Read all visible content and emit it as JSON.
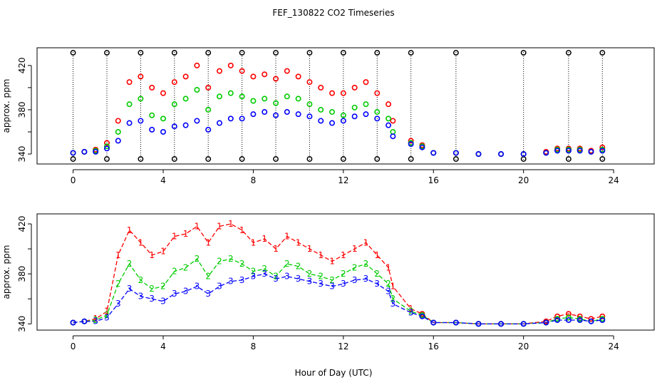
{
  "figure": {
    "title": "FEF_130822  CO2 Timeseries",
    "xlabel": "Hour of Day (UTC)"
  },
  "chart_data": [
    {
      "type": "scatter",
      "title": "FEF_130822  CO2 Timeseries",
      "ylabel": "approx. ppm",
      "xlim": [
        -1.6,
        25.8
      ],
      "ylim": [
        331,
        436
      ],
      "xticks": [
        0,
        4,
        8,
        12,
        16,
        20,
        24
      ],
      "yticks": [
        340,
        360,
        380,
        400,
        420
      ],
      "ytick_labels": [
        "340",
        "",
        "380",
        "",
        "420"
      ],
      "grid": false,
      "colors": {
        "s1": "#ff0000",
        "s2": "#00cc00",
        "s3": "#0000ff",
        "s0": "#000000",
        "s5": "#00cccc"
      },
      "series": [
        {
          "x": [
            0.0,
            0.5,
            1.0,
            1.5,
            2.0,
            2.5,
            3.0,
            3.5,
            4.0,
            4.5,
            5.0,
            5.5,
            6.0,
            6.5,
            7.0,
            7.5,
            8.0,
            8.5,
            9.0,
            9.5,
            10.0,
            10.5,
            11.0,
            11.5,
            12.0,
            12.5,
            13.0,
            13.5,
            14.0,
            14.2,
            15.0,
            15.5,
            16.0,
            17.0,
            18.0,
            19.0,
            20.0,
            21.0,
            21.5,
            22.0,
            22.5,
            23.0,
            23.5
          ],
          "values": [
            341,
            342,
            344,
            350,
            370,
            405,
            410,
            400,
            395,
            405,
            410,
            420,
            400,
            415,
            420,
            415,
            410,
            412,
            408,
            415,
            410,
            405,
            400,
            395,
            395,
            400,
            405,
            395,
            385,
            370,
            352,
            348,
            341,
            341,
            340,
            340,
            340,
            342,
            345,
            345,
            345,
            343,
            346
          ]
        },
        {
          "x": [
            0.0,
            0.5,
            1.0,
            1.5,
            2.0,
            2.5,
            3.0,
            3.5,
            4.0,
            4.5,
            5.0,
            5.5,
            6.0,
            6.5,
            7.0,
            7.5,
            8.0,
            8.5,
            9.0,
            9.5,
            10.0,
            10.5,
            11.0,
            11.5,
            12.0,
            12.5,
            13.0,
            13.5,
            14.0,
            14.2,
            15.0,
            15.5,
            16.0,
            17.0,
            18.0,
            19.0,
            20.0,
            21.0,
            21.5,
            22.0,
            22.5,
            23.0,
            23.5
          ],
          "values": [
            341,
            342,
            343,
            347,
            360,
            385,
            390,
            375,
            372,
            385,
            390,
            398,
            380,
            392,
            395,
            392,
            388,
            390,
            386,
            392,
            390,
            385,
            380,
            378,
            375,
            382,
            385,
            378,
            372,
            360,
            350,
            347,
            341,
            341,
            340,
            340,
            340,
            341,
            344,
            344,
            344,
            342,
            344
          ]
        },
        {
          "x": [
            0.0,
            0.5,
            1.0,
            1.5,
            2.0,
            2.5,
            3.0,
            3.5,
            4.0,
            4.5,
            5.0,
            5.5,
            6.0,
            6.5,
            7.0,
            7.5,
            8.0,
            8.5,
            9.0,
            9.5,
            10.0,
            10.5,
            11.0,
            11.5,
            12.0,
            12.5,
            13.0,
            13.5,
            14.0,
            14.2,
            15.0,
            15.5,
            16.0,
            17.0,
            18.0,
            19.0,
            20.0,
            21.0,
            21.5,
            22.0,
            22.5,
            23.0,
            23.5
          ],
          "values": [
            341,
            342,
            342,
            345,
            352,
            368,
            370,
            362,
            360,
            365,
            366,
            370,
            362,
            368,
            372,
            372,
            376,
            378,
            375,
            378,
            376,
            374,
            370,
            368,
            370,
            374,
            376,
            372,
            366,
            356,
            349,
            346,
            341,
            341,
            340,
            340,
            340,
            341,
            343,
            343,
            343,
            342,
            343
          ]
        }
      ]
    },
    {
      "type": "line",
      "ylabel": "approx. ppm",
      "xlim": [
        -1.6,
        25.8
      ],
      "ylim": [
        335,
        428
      ],
      "xticks": [
        0,
        4,
        8,
        12,
        16,
        20,
        24
      ],
      "yticks": [
        340,
        360,
        380,
        400,
        420
      ],
      "ytick_labels": [
        "340",
        "",
        "380",
        "",
        "420"
      ],
      "grid": false,
      "point_labels": [
        "1",
        "2",
        "3"
      ],
      "series": [
        {
          "x": [
            0.0,
            0.5,
            1.0,
            1.5,
            2.0,
            2.5,
            3.0,
            3.5,
            4.0,
            4.5,
            5.0,
            5.5,
            6.0,
            6.5,
            7.0,
            7.5,
            8.0,
            8.5,
            9.0,
            9.5,
            10.0,
            10.5,
            11.0,
            11.5,
            12.0,
            12.5,
            13.0,
            13.5,
            14.0,
            14.2,
            15.0,
            15.5,
            16.0,
            17.0,
            18.0,
            19.0,
            20.0,
            21.0,
            21.5,
            22.0,
            22.5,
            23.0,
            23.5
          ],
          "values": [
            341,
            342,
            344,
            350,
            395,
            415,
            405,
            395,
            398,
            410,
            412,
            418,
            405,
            418,
            420,
            415,
            405,
            408,
            400,
            410,
            405,
            400,
            395,
            390,
            395,
            400,
            405,
            395,
            385,
            370,
            352,
            348,
            341,
            341,
            340,
            340,
            340,
            342,
            346,
            348,
            346,
            344,
            346
          ]
        },
        {
          "x": [
            0.0,
            0.5,
            1.0,
            1.5,
            2.0,
            2.5,
            3.0,
            3.5,
            4.0,
            4.5,
            5.0,
            5.5,
            6.0,
            6.5,
            7.0,
            7.5,
            8.0,
            8.5,
            9.0,
            9.5,
            10.0,
            10.5,
            11.0,
            11.5,
            12.0,
            12.5,
            13.0,
            13.5,
            14.0,
            14.2,
            15.0,
            15.5,
            16.0,
            17.0,
            18.0,
            19.0,
            20.0,
            21.0,
            21.5,
            22.0,
            22.5,
            23.0,
            23.5
          ],
          "values": [
            341,
            342,
            343,
            347,
            372,
            388,
            375,
            368,
            370,
            382,
            385,
            392,
            378,
            390,
            392,
            388,
            382,
            384,
            378,
            388,
            386,
            380,
            378,
            375,
            380,
            385,
            388,
            380,
            372,
            360,
            350,
            347,
            341,
            341,
            340,
            340,
            340,
            341,
            344,
            345,
            344,
            342,
            344
          ]
        },
        {
          "x": [
            0.0,
            0.5,
            1.0,
            1.5,
            2.0,
            2.5,
            3.0,
            3.5,
            4.0,
            4.5,
            5.0,
            5.5,
            6.0,
            6.5,
            7.0,
            7.5,
            8.0,
            8.5,
            9.0,
            9.5,
            10.0,
            10.5,
            11.0,
            11.5,
            12.0,
            12.5,
            13.0,
            13.5,
            14.0,
            14.2,
            15.0,
            15.5,
            16.0,
            17.0,
            18.0,
            19.0,
            20.0,
            21.0,
            21.5,
            22.0,
            22.5,
            23.0,
            23.5
          ],
          "values": [
            341,
            342,
            342,
            345,
            356,
            368,
            362,
            360,
            358,
            364,
            366,
            370,
            364,
            370,
            374,
            375,
            378,
            380,
            376,
            378,
            376,
            374,
            372,
            370,
            372,
            375,
            376,
            372,
            366,
            356,
            349,
            346,
            341,
            341,
            340,
            340,
            340,
            341,
            343,
            343,
            343,
            342,
            343
          ]
        }
      ]
    }
  ]
}
